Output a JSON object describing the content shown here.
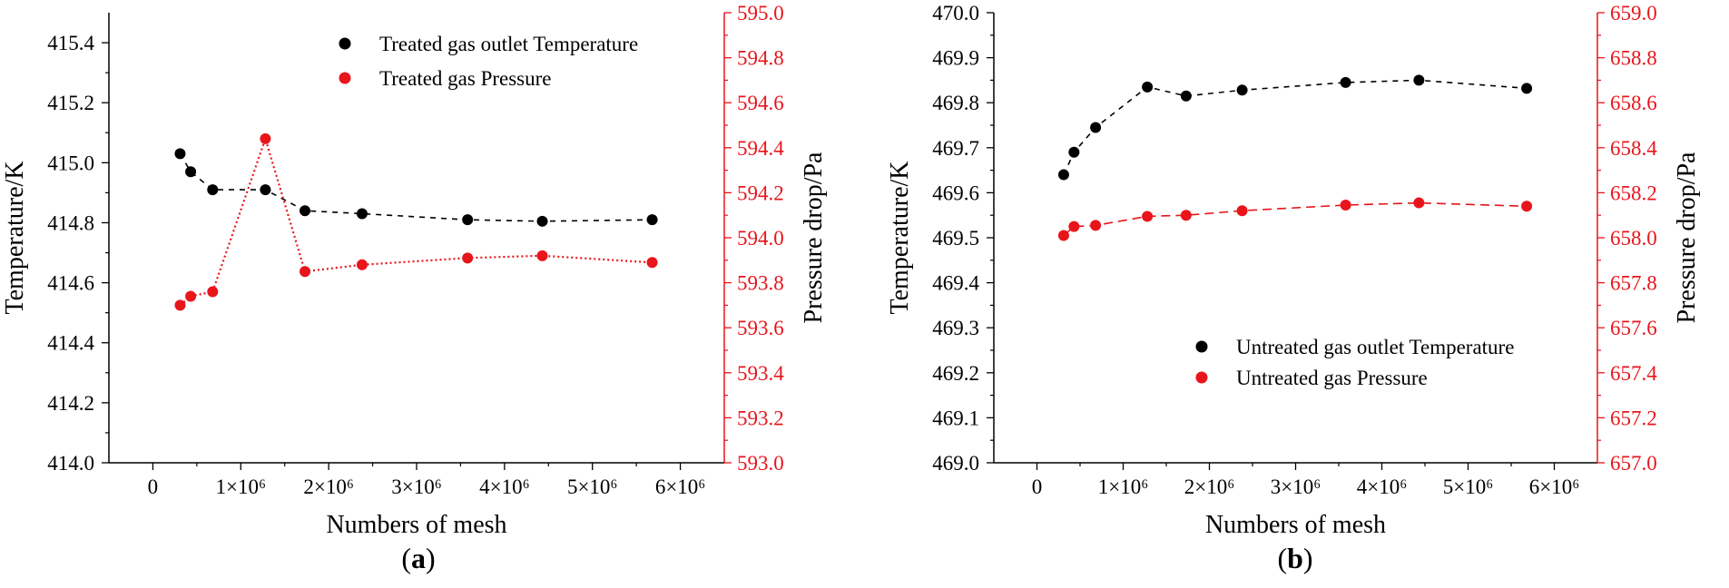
{
  "chart_data": [
    {
      "type": "line",
      "panel_label": "a",
      "xlabel": "Numbers of mesh",
      "ylabel": "Temperature/K",
      "y2label": "Pressure drop/Pa",
      "xlim": [
        -500000,
        6500000
      ],
      "ylim": [
        414.0,
        415.5
      ],
      "y2lim": [
        593.0,
        595.0
      ],
      "xticks": [
        0,
        1000000,
        2000000,
        3000000,
        4000000,
        5000000,
        6000000
      ],
      "xtick_labels": [
        "0",
        "1×10⁶",
        "2×10⁶",
        "3×10⁶",
        "4×10⁶",
        "5×10⁶",
        "6×10⁶"
      ],
      "yticks": [
        414.0,
        414.2,
        414.4,
        414.6,
        414.8,
        415.0,
        415.2,
        415.4
      ],
      "ytick_labels": [
        "414.0",
        "414.2",
        "414.4",
        "414.6",
        "414.8",
        "415.0",
        "415.2",
        "415.4"
      ],
      "y2ticks": [
        593.0,
        593.2,
        593.4,
        593.6,
        593.8,
        594.0,
        594.2,
        594.4,
        594.6,
        594.8,
        595.0
      ],
      "y2tick_labels": [
        "593.0",
        "593.2",
        "593.4",
        "593.6",
        "593.8",
        "594.0",
        "594.2",
        "594.4",
        "594.6",
        "594.8",
        "595.0"
      ],
      "legend_position": "top-right",
      "series": [
        {
          "name": "Treated gas outlet Temperature",
          "color": "#000000",
          "axis": "left",
          "x": [
            310000,
            430000,
            680000,
            1280000,
            1730000,
            2380000,
            3580000,
            4430000,
            5680000
          ],
          "values": [
            415.03,
            414.97,
            414.91,
            414.91,
            414.84,
            414.83,
            414.81,
            414.805,
            414.81
          ]
        },
        {
          "name": "Treated gas Pressure",
          "color": "#e8151b",
          "axis": "right",
          "x": [
            310000,
            430000,
            680000,
            1280000,
            1730000,
            2380000,
            3580000,
            4430000,
            5680000
          ],
          "values": [
            593.7,
            593.74,
            593.76,
            594.44,
            593.85,
            593.88,
            593.91,
            593.92,
            593.89
          ]
        }
      ]
    },
    {
      "type": "line",
      "panel_label": "b",
      "xlabel": "Numbers of mesh",
      "ylabel": "Temperature/K",
      "y2label": "Pressure drop/Pa",
      "xlim": [
        -500000,
        6500000
      ],
      "ylim": [
        469.0,
        470.0
      ],
      "y2lim": [
        657.0,
        659.0
      ],
      "xticks": [
        0,
        1000000,
        2000000,
        3000000,
        4000000,
        5000000,
        6000000
      ],
      "xtick_labels": [
        "0",
        "1×10⁶",
        "2×10⁶",
        "3×10⁶",
        "4×10⁶",
        "5×10⁶",
        "6×10⁶"
      ],
      "yticks": [
        469.0,
        469.1,
        469.2,
        469.3,
        469.4,
        469.5,
        469.6,
        469.7,
        469.8,
        469.9,
        470.0
      ],
      "ytick_labels": [
        "469.0",
        "469.1",
        "469.2",
        "469.3",
        "469.4",
        "469.5",
        "469.6",
        "469.7",
        "469.8",
        "469.9",
        "470.0"
      ],
      "y2ticks": [
        657.0,
        657.2,
        657.4,
        657.6,
        657.8,
        658.0,
        658.2,
        658.4,
        658.6,
        658.8,
        659.0
      ],
      "y2tick_labels": [
        "657.0",
        "657.2",
        "657.4",
        "657.6",
        "657.8",
        "658.0",
        "658.2",
        "658.4",
        "658.6",
        "658.8",
        "659.0"
      ],
      "legend_position": "lower-right",
      "series": [
        {
          "name": "Untreated gas outlet Temperature",
          "color": "#000000",
          "axis": "left",
          "x": [
            310000,
            430000,
            680000,
            1280000,
            1730000,
            2380000,
            3580000,
            4430000,
            5680000
          ],
          "values": [
            469.64,
            469.69,
            469.745,
            469.835,
            469.815,
            469.828,
            469.845,
            469.85,
            469.832
          ]
        },
        {
          "name": "Untreated gas Pressure",
          "color": "#e8151b",
          "axis": "right",
          "x": [
            310000,
            430000,
            680000,
            1280000,
            1730000,
            2380000,
            3580000,
            4430000,
            5680000
          ],
          "values": [
            658.01,
            658.05,
            658.055,
            658.095,
            658.1,
            658.12,
            658.145,
            658.155,
            658.14
          ]
        }
      ]
    }
  ]
}
